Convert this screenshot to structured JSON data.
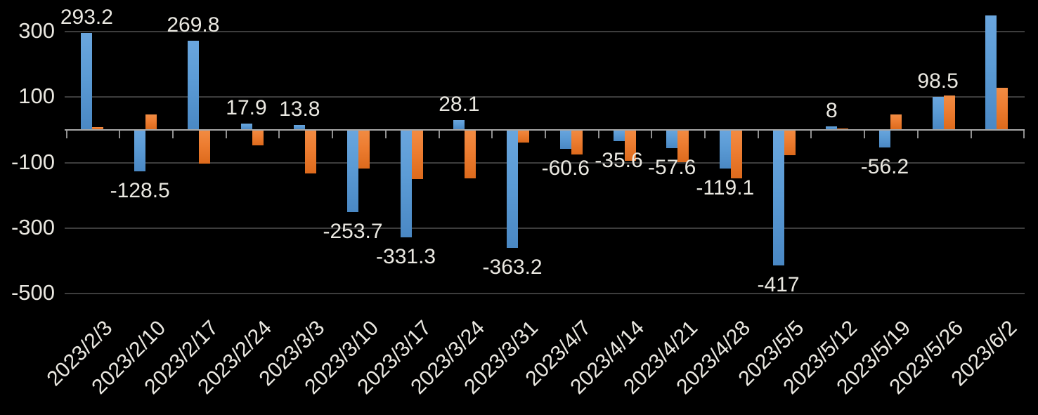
{
  "chart_data": {
    "type": "bar",
    "title": "",
    "legend": "none",
    "grid": true,
    "categories": [
      "2023/2/3",
      "2023/2/10",
      "2023/2/17",
      "2023/2/24",
      "2023/3/3",
      "2023/3/10",
      "2023/3/17",
      "2023/3/24",
      "2023/3/31",
      "2023/4/7",
      "2023/4/14",
      "2023/4/21",
      "2023/4/28",
      "2023/5/5",
      "2023/5/12",
      "2023/5/19",
      "2023/5/26",
      "2023/6/2"
    ],
    "series": [
      {
        "name": "blue-series",
        "color": "#5B9BD5",
        "values": [
          293.2,
          -128.5,
          269.8,
          17.9,
          13.8,
          -253.7,
          -331.3,
          28.1,
          -363.2,
          -60.6,
          -35.6,
          -57.6,
          -119.1,
          -417,
          8,
          -56.2,
          98.5,
          347
        ],
        "data_labels": [
          "293.2",
          "-128.5",
          "269.8",
          "17.9",
          "13.8",
          "-253.7",
          "-331.3",
          "28.1",
          "-363.2",
          "-60.6",
          "-35.6",
          "-57.6",
          "-119.1",
          "-417",
          "8",
          "-56.2",
          "98.5",
          ""
        ]
      },
      {
        "name": "orange-series",
        "color": "#ED7D31",
        "values": [
          6,
          45,
          -105,
          -50,
          -135,
          -120,
          -153,
          -150,
          -40,
          -78,
          -97,
          -100,
          -150,
          -80,
          3,
          45,
          103,
          127
        ],
        "data_labels": null
      }
    ],
    "y_axis": {
      "tick_values": [
        300,
        100,
        -100,
        -300,
        -500
      ],
      "tick_labels": [
        "300",
        "100",
        "-100",
        "-300",
        "-500"
      ],
      "range": [
        -500,
        350
      ],
      "gridlines": true
    },
    "x_axis": {
      "label_rotation_deg": -45,
      "tick_marks": "between-categories"
    },
    "colors": {
      "background": "#000000",
      "text": "#EAE8E1",
      "gridline": "#3D3D3D",
      "axis_line": "#A6A6A6",
      "tick_mark": "#8F8F8F"
    }
  }
}
